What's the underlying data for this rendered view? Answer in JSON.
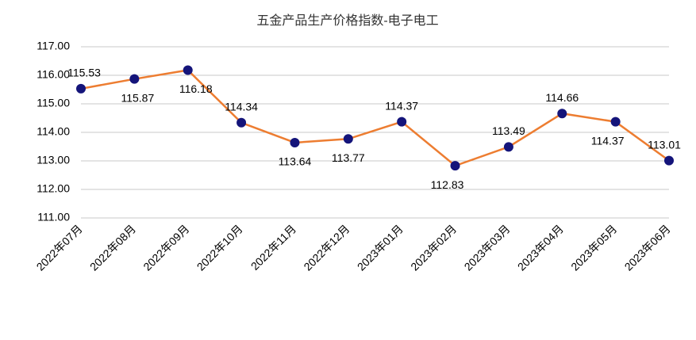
{
  "chart_data": {
    "type": "line",
    "title": "五金产品生产价格指数-电子电工",
    "categories": [
      "2022年07月",
      "2022年08月",
      "2022年09月",
      "2022年10月",
      "2022年11月",
      "2022年12月",
      "2023年01月",
      "2023年02月",
      "2023年03月",
      "2023年04月",
      "2023年05月",
      "2023年06月"
    ],
    "values": [
      115.53,
      115.87,
      116.18,
      114.34,
      113.64,
      113.77,
      114.37,
      112.83,
      113.49,
      114.66,
      114.37,
      113.01
    ],
    "line_color": "#ed7d31",
    "marker_color": "#14147a",
    "ylim": [
      111,
      117
    ],
    "yticks": [
      {
        "value": 111,
        "label": "111.00"
      },
      {
        "value": 112,
        "label": "112.00"
      },
      {
        "value": 113,
        "label": "113.00"
      },
      {
        "value": 114,
        "label": "114.00"
      },
      {
        "value": 115,
        "label": "115.00"
      },
      {
        "value": 116,
        "label": "116.00"
      },
      {
        "value": 117,
        "label": "117.00"
      }
    ],
    "grid": true
  }
}
